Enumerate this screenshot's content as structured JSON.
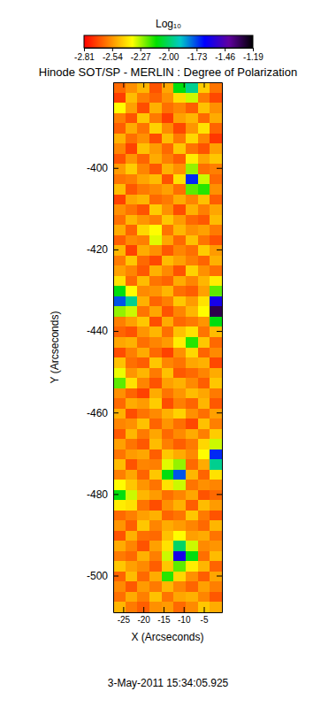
{
  "chart_data": {
    "type": "heatmap",
    "title": "Hinode SOT/SP - MERLIN : Degree of Polarization",
    "xlabel": "X (Arcseconds)",
    "ylabel": "Y (Arcseconds)",
    "annotation": "3-May-2011 15:34:05.925",
    "xlim": [
      -27.5,
      -0.5
    ],
    "ylim": [
      -509,
      -379
    ],
    "xticks": [
      -25,
      -20,
      -15,
      -10,
      -5
    ],
    "yticks": [
      -400,
      -420,
      -440,
      -460,
      -480,
      -500
    ],
    "colorbar": {
      "label": "Log₁₀",
      "range": [
        -2.81,
        -1.19
      ],
      "ticks": [
        -2.81,
        -2.54,
        -2.27,
        {
          "value": -2,
          "label": "-2.00"
        },
        -1.73,
        -1.46,
        -1.19
      ],
      "colors": [
        "#ff0000",
        "#ff8000",
        "#ffff00",
        "#00e000",
        "#00c8c8",
        "#0000ff",
        "#6000a0",
        "#000000"
      ]
    },
    "x": [
      -26,
      -23,
      -20,
      -17,
      -14,
      -11,
      -8,
      -5,
      -2
    ],
    "y": [
      -380.25,
      -382.75,
      -385.25,
      -387.75,
      -390.25,
      -392.75,
      -395.25,
      -397.75,
      -400.25,
      -402.75,
      -405.25,
      -407.75,
      -410.25,
      -412.75,
      -415.25,
      -417.75,
      -420.25,
      -422.75,
      -425.25,
      -427.75,
      -430.25,
      -432.75,
      -435.25,
      -437.75,
      -440.25,
      -442.75,
      -445.25,
      -447.75,
      -450.25,
      -452.75,
      -455.25,
      -457.75,
      -460.25,
      -462.75,
      -465.25,
      -467.75,
      -470.25,
      -472.75,
      -475.25,
      -477.75,
      -480.25,
      -482.75,
      -485.25,
      -487.75,
      -490.25,
      -492.75,
      -495.25,
      -497.75,
      -500.25,
      -502.75,
      -505.25,
      -507.75
    ],
    "values": [
      [
        -2.62,
        -2.55,
        -2.48,
        -2.66,
        -2.51,
        -2.1,
        -1.95,
        -2.44,
        -2.6
      ],
      [
        -2.7,
        -2.47,
        -2.58,
        -2.63,
        -2.55,
        -2.41,
        -2.3,
        -2.59,
        -2.68
      ],
      [
        -2.35,
        -2.52,
        -2.67,
        -2.49,
        -2.61,
        -2.57,
        -2.64,
        -2.46,
        -2.55
      ],
      [
        -2.58,
        -2.66,
        -2.45,
        -2.59,
        -2.7,
        -2.52,
        -2.48,
        -2.62,
        -2.5
      ],
      [
        -2.64,
        -2.5,
        -2.6,
        -2.43,
        -2.56,
        -2.68,
        -2.54,
        -2.4,
        -2.63
      ],
      [
        -2.49,
        -2.61,
        -2.55,
        -2.67,
        -2.47,
        -2.59,
        -2.42,
        -2.57,
        -2.71
      ],
      [
        -2.57,
        -2.69,
        -2.46,
        -2.53,
        -2.62,
        -2.45,
        -2.6,
        -2.66,
        -2.52
      ],
      [
        -2.66,
        -2.54,
        -2.63,
        -2.5,
        -2.58,
        -2.64,
        -2.38,
        -2.51,
        -2.45
      ],
      [
        -2.53,
        -2.44,
        -2.57,
        -2.65,
        -2.49,
        -2.55,
        -2.25,
        -2.61,
        -2.58
      ],
      [
        -2.6,
        -2.58,
        -2.51,
        -2.47,
        -2.66,
        -2.4,
        -1.7,
        -2.3,
        -2.62
      ],
      [
        -2.47,
        -2.65,
        -2.59,
        -2.56,
        -2.52,
        -2.61,
        -2.2,
        -2.15,
        -2.55
      ],
      [
        -2.69,
        -2.51,
        -2.48,
        -2.62,
        -2.59,
        -2.5,
        -2.57,
        -2.46,
        -2.64
      ],
      [
        -2.55,
        -2.6,
        -2.66,
        -2.44,
        -2.55,
        -2.67,
        -2.49,
        -2.58,
        -2.51
      ],
      [
        -2.61,
        -2.48,
        -2.54,
        -2.58,
        -2.45,
        -2.53,
        -2.62,
        -2.65,
        -2.47
      ],
      [
        -2.5,
        -2.63,
        -2.42,
        -2.35,
        -2.6,
        -2.48,
        -2.55,
        -2.52,
        -2.59
      ],
      [
        -2.64,
        -2.56,
        -2.58,
        -2.32,
        -2.51,
        -2.62,
        -2.46,
        -2.6,
        -2.66
      ],
      [
        -2.48,
        -2.69,
        -2.5,
        -2.55,
        -2.65,
        -2.57,
        -2.61,
        -2.44,
        -2.53
      ],
      [
        -2.59,
        -2.45,
        -2.62,
        -2.68,
        -2.47,
        -2.52,
        -2.58,
        -2.63,
        -2.49
      ],
      [
        -2.52,
        -2.57,
        -2.65,
        -2.49,
        -2.56,
        -2.66,
        -2.43,
        -2.55,
        -2.61
      ],
      [
        -2.4,
        -2.62,
        -2.47,
        -2.6,
        -2.63,
        -2.5,
        -2.57,
        -2.48,
        -2.38
      ],
      [
        -2.1,
        -2.35,
        -2.56,
        -2.54,
        -2.48,
        -2.61,
        -2.64,
        -2.52,
        -2.2
      ],
      [
        -1.75,
        -1.95,
        -2.49,
        -2.63,
        -2.58,
        -2.45,
        -2.53,
        -2.4,
        -1.6
      ],
      [
        -2.25,
        -2.3,
        -2.6,
        -2.51,
        -2.66,
        -2.57,
        -2.48,
        -2.35,
        -1.3
      ],
      [
        -2.58,
        -2.52,
        -2.45,
        -2.67,
        -2.5,
        -2.62,
        -2.59,
        -2.54,
        -2.1
      ],
      [
        -2.63,
        -2.66,
        -2.54,
        -2.48,
        -2.61,
        -2.46,
        -2.4,
        -2.6,
        -2.47
      ],
      [
        -2.51,
        -2.49,
        -2.61,
        -2.57,
        -2.53,
        -2.38,
        -2.15,
        -2.45,
        -2.62
      ],
      [
        -2.67,
        -2.58,
        -2.5,
        -2.62,
        -2.69,
        -2.55,
        -2.42,
        -2.63,
        -2.56
      ],
      [
        -2.46,
        -2.61,
        -2.64,
        -2.45,
        -2.57,
        -2.6,
        -2.51,
        -2.49,
        -2.68
      ],
      [
        -2.33,
        -2.54,
        -2.48,
        -2.59,
        -2.46,
        -2.65,
        -2.62,
        -2.57,
        -2.5
      ],
      [
        -2.2,
        -2.4,
        -2.57,
        -2.66,
        -2.52,
        -2.49,
        -2.56,
        -2.64,
        -2.45
      ],
      [
        -2.55,
        -2.63,
        -2.69,
        -2.5,
        -2.6,
        -2.54,
        -2.47,
        -2.51,
        -2.59
      ],
      [
        -2.62,
        -2.5,
        -2.53,
        -2.44,
        -2.67,
        -2.58,
        -2.63,
        -2.48,
        -2.65
      ],
      [
        -2.49,
        -2.67,
        -2.6,
        -2.56,
        -2.49,
        -2.43,
        -2.55,
        -2.61,
        -2.52
      ],
      [
        -2.57,
        -2.55,
        -2.46,
        -2.63,
        -2.54,
        -2.61,
        -2.68,
        -2.46,
        -2.58
      ],
      [
        -2.65,
        -2.48,
        -2.59,
        -2.51,
        -2.62,
        -2.56,
        -2.5,
        -2.58,
        -2.44
      ],
      [
        -2.52,
        -2.6,
        -2.65,
        -2.47,
        -2.58,
        -2.64,
        -2.59,
        -2.42,
        -2.3
      ],
      [
        -2.6,
        -2.53,
        -2.51,
        -2.64,
        -2.45,
        -2.5,
        -2.56,
        -2.35,
        -1.7
      ],
      [
        -2.47,
        -2.66,
        -2.57,
        -2.58,
        -2.32,
        -2.25,
        -2.62,
        -2.5,
        -1.95
      ],
      [
        -2.58,
        -2.51,
        -2.63,
        -2.45,
        -2.1,
        -1.75,
        -2.48,
        -2.63,
        -2.4
      ],
      [
        -2.35,
        -2.45,
        -2.54,
        -2.6,
        -2.4,
        -2.3,
        -2.6,
        -2.55,
        -2.57
      ],
      [
        -2.1,
        -2.3,
        -2.48,
        -2.53,
        -2.61,
        -2.57,
        -2.51,
        -2.66,
        -2.62
      ],
      [
        -2.38,
        -2.4,
        -2.6,
        -2.67,
        -2.55,
        -2.49,
        -2.64,
        -2.47,
        -2.53
      ],
      [
        -2.62,
        -2.58,
        -2.52,
        -2.49,
        -2.63,
        -2.6,
        -2.45,
        -2.59,
        -2.66
      ],
      [
        -2.54,
        -2.64,
        -2.45,
        -2.57,
        -2.5,
        -2.53,
        -2.57,
        -2.62,
        -2.48
      ],
      [
        -2.66,
        -2.49,
        -2.61,
        -2.62,
        -2.46,
        -2.35,
        -2.52,
        -2.5,
        -2.6
      ],
      [
        -2.5,
        -2.57,
        -2.66,
        -2.52,
        -2.4,
        -2.0,
        -2.3,
        -2.56,
        -2.54
      ],
      [
        -2.59,
        -2.62,
        -2.49,
        -2.58,
        -2.3,
        -1.6,
        -2.1,
        -2.61,
        -2.47
      ],
      [
        -2.45,
        -2.52,
        -2.56,
        -2.64,
        -2.45,
        -2.2,
        -2.38,
        -2.48,
        -2.63
      ],
      [
        -2.63,
        -2.47,
        -2.62,
        -2.5,
        -2.15,
        -2.42,
        -2.55,
        -2.64,
        -2.51
      ],
      [
        -2.56,
        -2.65,
        -2.53,
        -2.59,
        -2.48,
        -2.57,
        -2.63,
        -2.52,
        -2.58
      ],
      [
        -2.61,
        -2.5,
        -2.58,
        -2.46,
        -2.6,
        -2.51,
        -2.49,
        -2.57,
        -2.65
      ],
      [
        -2.48,
        -2.59,
        -2.64,
        -2.55,
        -2.53,
        -2.62,
        -2.56,
        -2.45,
        -2.5
      ]
    ]
  }
}
